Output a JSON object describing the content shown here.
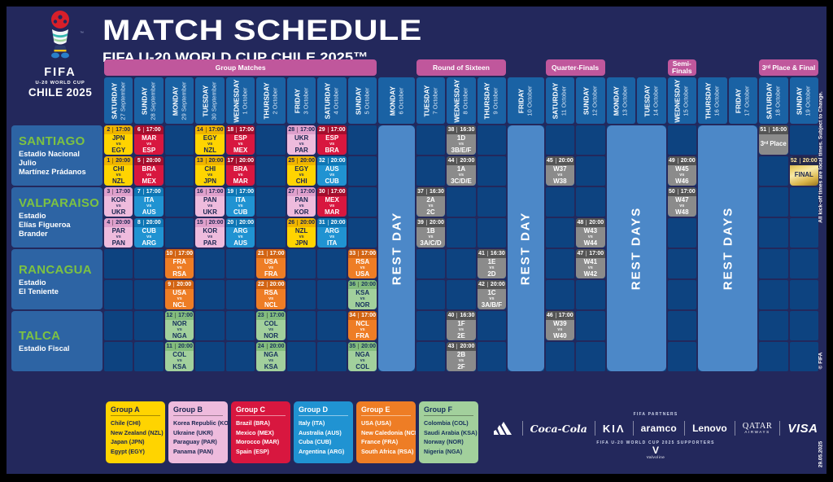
{
  "header": {
    "title": "MATCH SCHEDULE",
    "subtitle": "FIFA U-20 WORLD CUP CHILE 2025™",
    "logo": {
      "fifa": "FIFA",
      "competition": "U-20 WORLD CUP",
      "host": "CHILE 2025",
      "tm": "™"
    }
  },
  "phases": [
    {
      "label": "Group Matches",
      "col": 1,
      "span": 9
    },
    {
      "label": "Round of Sixteen",
      "col": 11,
      "span": 3
    },
    {
      "label": "Quarter-Finals",
      "col": 15,
      "span": 2
    },
    {
      "label": "Semi-\nFinals",
      "col": 19,
      "span": 1
    },
    {
      "label": "3ʳᵈ Place & Final",
      "col": 22,
      "span": 2
    }
  ],
  "columns": [
    {
      "day": "SATURDAY",
      "date": "27 September"
    },
    {
      "day": "SUNDAY",
      "date": "28 September"
    },
    {
      "day": "MONDAY",
      "date": "29 September"
    },
    {
      "day": "TUESDAY",
      "date": "30 September"
    },
    {
      "day": "WEDNESDAY",
      "date": "1 October"
    },
    {
      "day": "THURSDAY",
      "date": "2 October"
    },
    {
      "day": "FRIDAY",
      "date": "3 October"
    },
    {
      "day": "SATURDAY",
      "date": "4 October"
    },
    {
      "day": "SUNDAY",
      "date": "5 October"
    },
    {
      "day": "MONDAY",
      "date": "6 October"
    },
    {
      "day": "TUESDAY",
      "date": "7 October"
    },
    {
      "day": "WEDNESDAY",
      "date": "8 October"
    },
    {
      "day": "THURSDAY",
      "date": "9 October"
    },
    {
      "day": "FRIDAY",
      "date": "10 October"
    },
    {
      "day": "SATURDAY",
      "date": "11 October"
    },
    {
      "day": "SUNDAY",
      "date": "12 October"
    },
    {
      "day": "MONDAY",
      "date": "13 October"
    },
    {
      "day": "TUESDAY",
      "date": "14 October"
    },
    {
      "day": "WEDNESDAY",
      "date": "15 October"
    },
    {
      "day": "THURSDAY",
      "date": "16 October"
    },
    {
      "day": "FRIDAY",
      "date": "17 October"
    },
    {
      "day": "SATURDAY",
      "date": "18 October"
    },
    {
      "day": "SUNDAY",
      "date": "19 October"
    }
  ],
  "venues": [
    {
      "city": "SANTIAGO",
      "stadium": "Estadio Nacional Julio\nMartínez Prádanos"
    },
    {
      "city": "VALPARAISO",
      "stadium": "Estadio\nElías Figueroa Brander"
    },
    {
      "city": "RANCAGUA",
      "stadium": "Estadio\nEl Teniente"
    },
    {
      "city": "TALCA",
      "stadium": "Estadio Fiscal"
    }
  ],
  "rest_blocks": [
    {
      "label": "REST DAY",
      "col": 10,
      "span": 1
    },
    {
      "label": "REST DAY",
      "col": 14,
      "span": 1
    },
    {
      "label": "REST DAYS",
      "col": 17,
      "span": 2
    },
    {
      "label": "REST DAYS",
      "col": 20,
      "span": 2
    }
  ],
  "matches": [
    {
      "n": 2,
      "time": "17:00",
      "home": "JPN",
      "away": "EGY",
      "group": "A",
      "col": 1,
      "row": 1
    },
    {
      "n": 1,
      "time": "20:00",
      "home": "CHI",
      "away": "NZL",
      "group": "A",
      "col": 1,
      "row": 2
    },
    {
      "n": 3,
      "time": "17:00",
      "home": "KOR",
      "away": "UKR",
      "group": "B",
      "col": 1,
      "row": 3
    },
    {
      "n": 4,
      "time": "20:00",
      "home": "PAR",
      "away": "PAN",
      "group": "B",
      "col": 1,
      "row": 4
    },
    {
      "n": 6,
      "time": "17:00",
      "home": "MAR",
      "away": "ESP",
      "group": "C",
      "col": 2,
      "row": 1
    },
    {
      "n": 5,
      "time": "20:00",
      "home": "BRA",
      "away": "MEX",
      "group": "C",
      "col": 2,
      "row": 2
    },
    {
      "n": 7,
      "time": "17:00",
      "home": "ITA",
      "away": "AUS",
      "group": "D",
      "col": 2,
      "row": 3
    },
    {
      "n": 8,
      "time": "20:00",
      "home": "CUB",
      "away": "ARG",
      "group": "D",
      "col": 2,
      "row": 4
    },
    {
      "n": 10,
      "time": "17:00",
      "home": "FRA",
      "away": "RSA",
      "group": "E",
      "col": 3,
      "row": 5
    },
    {
      "n": 9,
      "time": "20:00",
      "home": "USA",
      "away": "NCL",
      "group": "E",
      "col": 3,
      "row": 6
    },
    {
      "n": 12,
      "time": "17:00",
      "home": "NOR",
      "away": "NGA",
      "group": "F",
      "col": 3,
      "row": 7
    },
    {
      "n": 11,
      "time": "20:00",
      "home": "COL",
      "away": "KSA",
      "group": "F",
      "col": 3,
      "row": 8
    },
    {
      "n": 14,
      "time": "17:00",
      "home": "EGY",
      "away": "NZL",
      "group": "A",
      "col": 4,
      "row": 1
    },
    {
      "n": 13,
      "time": "20:00",
      "home": "CHI",
      "away": "JPN",
      "group": "A",
      "col": 4,
      "row": 2
    },
    {
      "n": 16,
      "time": "17:00",
      "home": "PAN",
      "away": "UKR",
      "group": "B",
      "col": 4,
      "row": 3
    },
    {
      "n": 15,
      "time": "20:00",
      "home": "KOR",
      "away": "PAR",
      "group": "B",
      "col": 4,
      "row": 4
    },
    {
      "n": 18,
      "time": "17:00",
      "home": "ESP",
      "away": "MEX",
      "group": "C",
      "col": 5,
      "row": 1
    },
    {
      "n": 17,
      "time": "20:00",
      "home": "BRA",
      "away": "MAR",
      "group": "C",
      "col": 5,
      "row": 2
    },
    {
      "n": 19,
      "time": "17:00",
      "home": "ITA",
      "away": "CUB",
      "group": "D",
      "col": 5,
      "row": 3
    },
    {
      "n": 20,
      "time": "20:00",
      "home": "ARG",
      "away": "AUS",
      "group": "D",
      "col": 5,
      "row": 4
    },
    {
      "n": 21,
      "time": "17:00",
      "home": "USA",
      "away": "FRA",
      "group": "E",
      "col": 6,
      "row": 5
    },
    {
      "n": 22,
      "time": "20:00",
      "home": "RSA",
      "away": "NCL",
      "group": "E",
      "col": 6,
      "row": 6
    },
    {
      "n": 23,
      "time": "17:00",
      "home": "COL",
      "away": "NOR",
      "group": "F",
      "col": 6,
      "row": 7
    },
    {
      "n": 24,
      "time": "20:00",
      "home": "NGA",
      "away": "KSA",
      "group": "F",
      "col": 6,
      "row": 8
    },
    {
      "n": 28,
      "time": "17:00",
      "home": "UKR",
      "away": "PAR",
      "group": "B",
      "col": 7,
      "row": 1
    },
    {
      "n": 25,
      "time": "20:00",
      "home": "EGY",
      "away": "CHI",
      "group": "A",
      "col": 7,
      "row": 2
    },
    {
      "n": 27,
      "time": "17:00",
      "home": "PAN",
      "away": "KOR",
      "group": "B",
      "col": 7,
      "row": 3
    },
    {
      "n": 26,
      "time": "20:00",
      "home": "NZL",
      "away": "JPN",
      "group": "A",
      "col": 7,
      "row": 4
    },
    {
      "n": 29,
      "time": "17:00",
      "home": "ESP",
      "away": "BRA",
      "group": "C",
      "col": 8,
      "row": 1
    },
    {
      "n": 32,
      "time": "20:00",
      "home": "AUS",
      "away": "CUB",
      "group": "D",
      "col": 8,
      "row": 2
    },
    {
      "n": 30,
      "time": "17:00",
      "home": "MEX",
      "away": "MAR",
      "group": "C",
      "col": 8,
      "row": 3
    },
    {
      "n": 31,
      "time": "20:00",
      "home": "ARG",
      "away": "ITA",
      "group": "D",
      "col": 8,
      "row": 4
    },
    {
      "n": 33,
      "time": "17:00",
      "home": "RSA",
      "away": "USA",
      "group": "E",
      "col": 9,
      "row": 5
    },
    {
      "n": 36,
      "time": "20:00",
      "home": "KSA",
      "away": "NOR",
      "group": "F",
      "col": 9,
      "row": 6
    },
    {
      "n": 34,
      "time": "17:00",
      "home": "NCL",
      "away": "FRA",
      "group": "E",
      "col": 9,
      "row": 7
    },
    {
      "n": 35,
      "time": "20:00",
      "home": "NGA",
      "away": "COL",
      "group": "F",
      "col": 9,
      "row": 8
    },
    {
      "n": 37,
      "time": "16:30",
      "home": "2A",
      "away": "2C",
      "group": "KO",
      "col": 11,
      "row": 3
    },
    {
      "n": 39,
      "time": "20:00",
      "home": "1B",
      "away": "3A/C/D",
      "group": "KO",
      "col": 11,
      "row": 4
    },
    {
      "n": 38,
      "time": "16:30",
      "home": "1D",
      "away": "3B/E/F",
      "group": "KO",
      "col": 12,
      "row": 1
    },
    {
      "n": 44,
      "time": "20:00",
      "home": "1A",
      "away": "3C/D/E",
      "group": "KO",
      "col": 12,
      "row": 2
    },
    {
      "n": 40,
      "time": "16:30",
      "home": "1F",
      "away": "2E",
      "group": "KO",
      "col": 12,
      "row": 7
    },
    {
      "n": 43,
      "time": "20:00",
      "home": "2B",
      "away": "2F",
      "group": "KO",
      "col": 12,
      "row": 8
    },
    {
      "n": 41,
      "time": "16:30",
      "home": "1E",
      "away": "2D",
      "group": "KO",
      "col": 13,
      "row": 5
    },
    {
      "n": 42,
      "time": "20:00",
      "home": "1C",
      "away": "3A/B/F",
      "group": "KO",
      "col": 13,
      "row": 6
    },
    {
      "n": 45,
      "time": "20:00",
      "home": "W37",
      "away": "W38",
      "group": "KO",
      "col": 15,
      "row": 2
    },
    {
      "n": 46,
      "time": "17:00",
      "home": "W39",
      "away": "W40",
      "group": "KO",
      "col": 15,
      "row": 7
    },
    {
      "n": 48,
      "time": "20:00",
      "home": "W43",
      "away": "W44",
      "group": "KO",
      "col": 16,
      "row": 4
    },
    {
      "n": 47,
      "time": "17:00",
      "home": "W41",
      "away": "W42",
      "group": "KO",
      "col": 16,
      "row": 5
    },
    {
      "n": 49,
      "time": "20:00",
      "home": "W45",
      "away": "W46",
      "group": "KO",
      "col": 19,
      "row": 2
    },
    {
      "n": 50,
      "time": "17:00",
      "home": "W47",
      "away": "W48",
      "group": "KO",
      "col": 19,
      "row": 3
    },
    {
      "n": 51,
      "time": "16:00",
      "label": "3ʳᵈ Place",
      "group": "KO",
      "col": 22,
      "row": 1
    },
    {
      "n": 52,
      "time": "20:00",
      "label": "FINAL",
      "group": "FINAL",
      "col": 23,
      "row": 2
    }
  ],
  "groups": [
    {
      "name": "Group A",
      "style": "ga",
      "teams": [
        "Chile (CHI)",
        "New Zealand (NZL)",
        "Japan (JPN)",
        "Egypt (EGY)"
      ]
    },
    {
      "name": "Group B",
      "style": "gb",
      "teams": [
        "Korea Republic (KOR)",
        "Ukraine (UKR)",
        "Paraguay (PAR)",
        "Panama (PAN)"
      ]
    },
    {
      "name": "Group C",
      "style": "gc",
      "teams": [
        "Brazil (BRA)",
        "Mexico (MEX)",
        "Morocco (MAR)",
        "Spain (ESP)"
      ]
    },
    {
      "name": "Group D",
      "style": "gd",
      "teams": [
        "Italy (ITA)",
        "Australia (AUS)",
        "Cuba (CUB)",
        "Argentina (ARG)"
      ]
    },
    {
      "name": "Group E",
      "style": "ge",
      "teams": [
        "USA (USA)",
        "New Caledonia (NCL)",
        "France (FRA)",
        "South Africa (RSA)"
      ]
    },
    {
      "name": "Group F",
      "style": "gf",
      "teams": [
        "Colombia (COL)",
        "Saudi Arabia (KSA)",
        "Norway (NOR)",
        "Nigeria (NGA)"
      ]
    }
  ],
  "sponsors": {
    "partners_label": "FIFA PARTNERS",
    "adidas": "adidas",
    "coca_cola": "Coca-Cola",
    "kia": "KIΛ",
    "aramco": "aramco",
    "lenovo": "Lenovo",
    "qatar": "QATAR",
    "qatar_sub": "AIRWAYS",
    "visa": "VISA",
    "supporters_label": "FIFA U-20 WORLD CUP 2025 SUPPORTERS",
    "supporter_initial": "V",
    "supporter_name": "Valvoline"
  },
  "notes": {
    "kickoff": "All kick-off times are local times. Subject to Change.",
    "copyright": "© FIFA",
    "date": "29.05.2025"
  },
  "colors": {
    "background": "#23285c",
    "panel_blue": "#2d64a4",
    "header_blue": "#1a62a4",
    "cell_blue": "#0d4380",
    "rest_blue": "#4c88c8",
    "phase_pink": "#c0579c",
    "group_a": "#ffd400",
    "group_b": "#eebbdd",
    "group_c": "#d8173f",
    "group_d": "#2093d2",
    "group_e": "#ee7d25",
    "group_f": "#a2d09c",
    "knockout_gray": "#8b8b8b",
    "final_gold": "#d9b54a",
    "city_green": "#7dc242"
  }
}
